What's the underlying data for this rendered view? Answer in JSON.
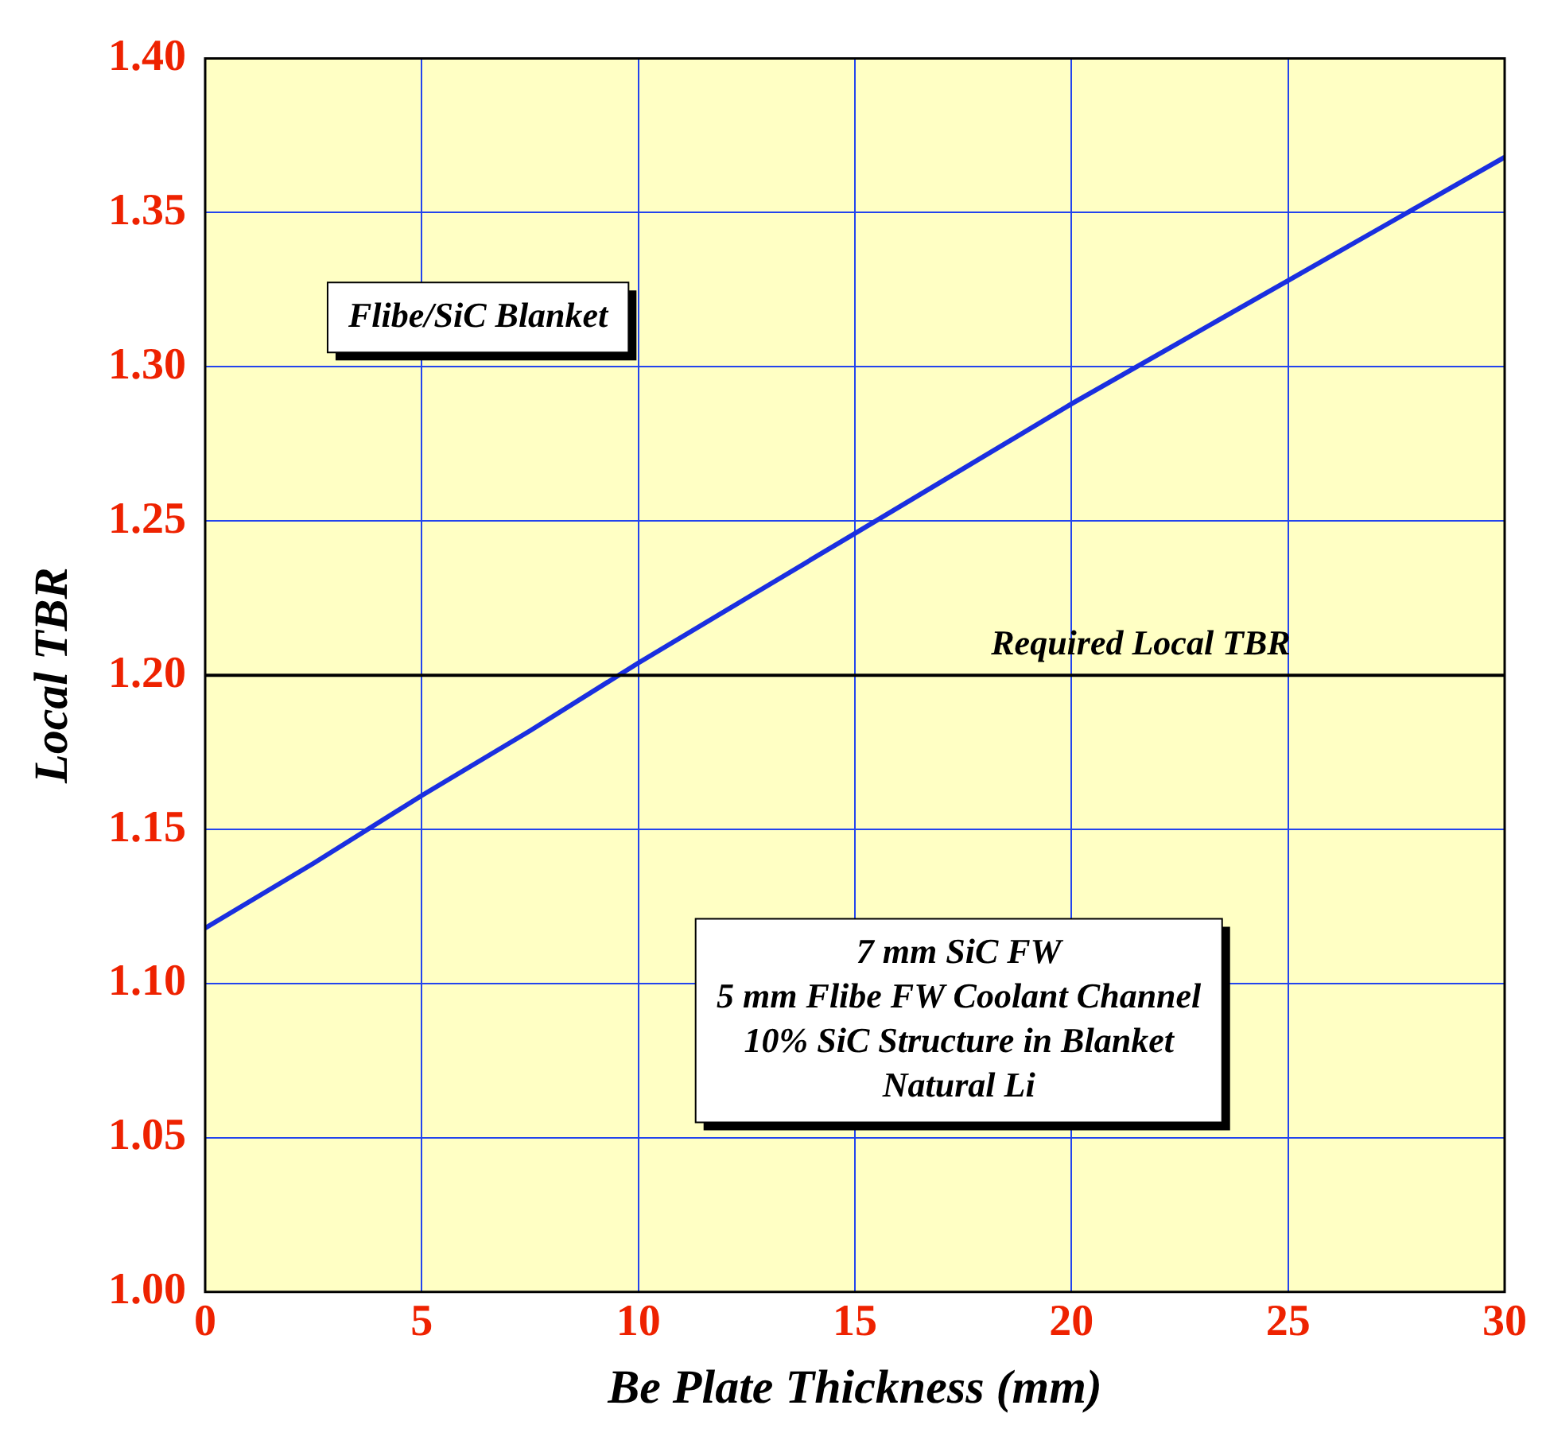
{
  "chart_data": {
    "type": "line",
    "xlabel": "Be Plate Thickness (mm)",
    "ylabel": "Local TBR",
    "x": [
      0,
      2.5,
      5,
      7.5,
      10,
      12.5,
      15,
      17.5,
      20,
      22.5,
      25,
      27.5,
      30
    ],
    "series": [
      {
        "color": "#1a2fe0",
        "values": [
          1.118,
          1.139,
          1.161,
          1.182,
          1.204,
          1.225,
          1.246,
          1.267,
          1.288,
          1.308,
          1.328,
          1.348,
          1.368
        ]
      }
    ],
    "xlim": [
      0,
      30
    ],
    "xticks": [
      0,
      5,
      10,
      15,
      20,
      25,
      30
    ],
    "ylim": [
      1.0,
      1.4
    ],
    "yticks": [
      {
        "value": 1.0,
        "label": "1.00"
      },
      {
        "value": 1.05,
        "label": "1.05"
      },
      {
        "value": 1.1,
        "label": "1.10"
      },
      {
        "value": 1.15,
        "label": "1.15"
      },
      {
        "value": 1.2,
        "label": "1.20"
      },
      {
        "value": 1.25,
        "label": "1.25"
      },
      {
        "value": 1.3,
        "label": "1.30"
      },
      {
        "value": 1.35,
        "label": "1.35"
      },
      {
        "value": 1.4,
        "label": "1.40"
      }
    ],
    "ref_lines": [
      {
        "axis": "y",
        "value": 1.2,
        "label": "Required Local TBR",
        "color": "#000000"
      }
    ],
    "annotations": [
      "Flibe/SiC Blanket",
      "7 mm SiC FW\n5 mm Flibe FW Coolant Channel\n10% SiC Structure in Blanket\nNatural Li"
    ],
    "grid": true,
    "legend": false,
    "marker": "none",
    "line_style": "solid"
  }
}
